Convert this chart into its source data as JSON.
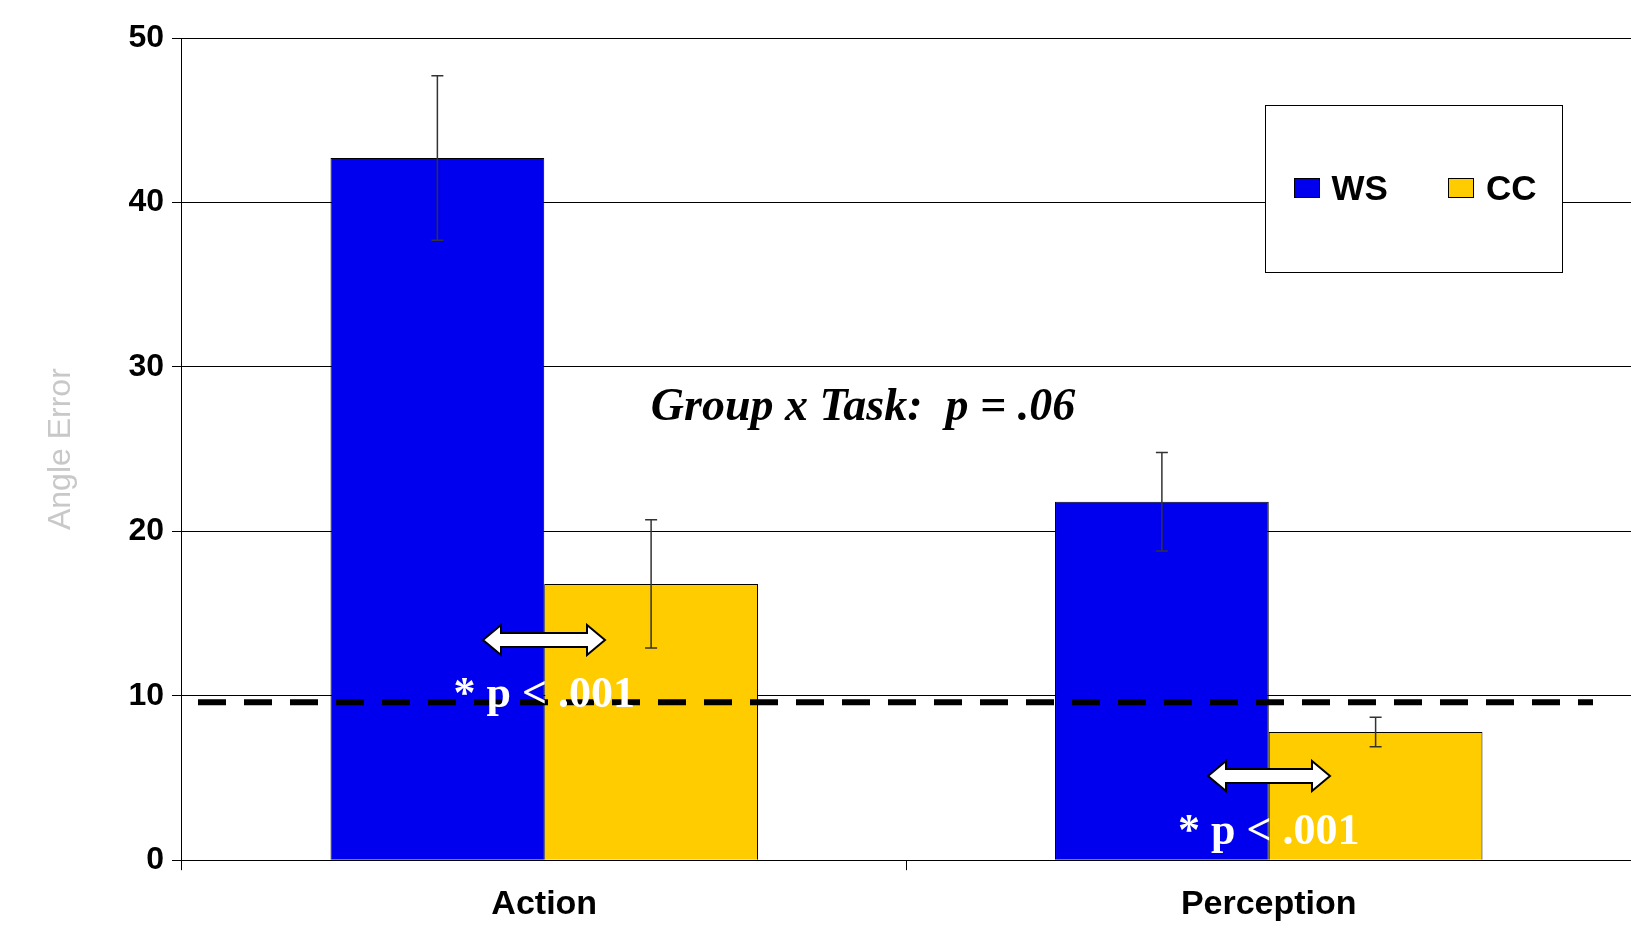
{
  "chart_data": {
    "type": "bar",
    "ylabel": "Angle Error",
    "categories": [
      "Action",
      "Perception"
    ],
    "series": [
      {
        "name": "WS",
        "color": "#0000ee",
        "values": [
          42.7,
          21.8
        ],
        "errors": [
          5,
          3
        ]
      },
      {
        "name": "CC",
        "color": "#ffcc00",
        "values": [
          16.8,
          7.8
        ],
        "errors": [
          3.9,
          0.9
        ]
      }
    ],
    "ylim": [
      0,
      50
    ],
    "yticks": [
      0,
      10,
      20,
      30,
      40,
      50
    ],
    "grid": "y",
    "legend": "top right",
    "ref_lines": [
      {
        "axis": "y",
        "value": 9.6,
        "color": "#000000",
        "line_style": "dashed"
      }
    ],
    "annotations": [
      "Group x Task:  p = .06",
      {
        "text": "* p < .001",
        "x": "Action",
        "y": 10
      },
      {
        "text": "* p < .001",
        "x": "Perception",
        "y": 1.7
      }
    ]
  }
}
